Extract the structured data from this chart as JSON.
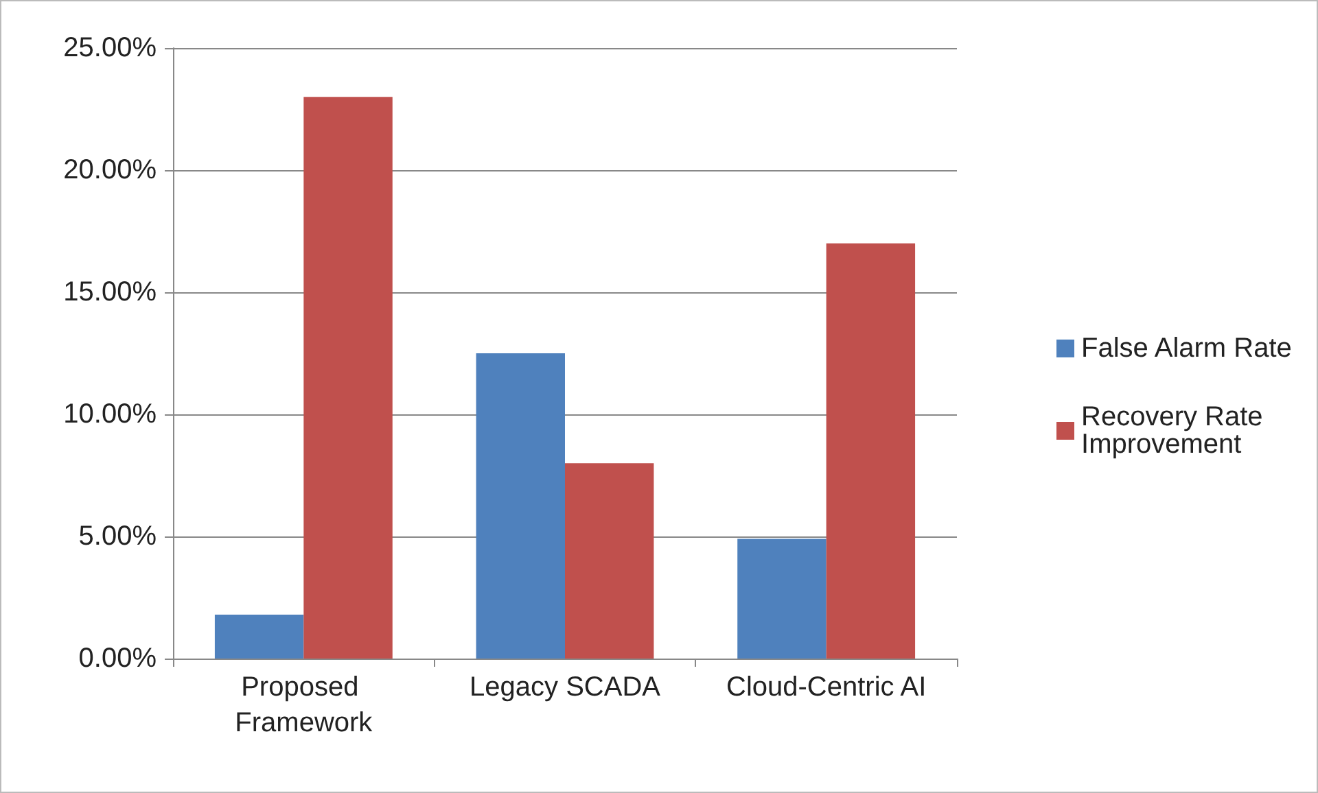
{
  "chart_data": {
    "type": "bar",
    "categories": [
      "Proposed Framework",
      "Legacy SCADA",
      "Cloud-Centric AI"
    ],
    "series": [
      {
        "name": "False Alarm Rate",
        "color": "#4f81bd",
        "values": [
          1.8,
          12.5,
          4.9
        ]
      },
      {
        "name": "Recovery Rate Improvement",
        "color": "#c0504d",
        "values": [
          23,
          8,
          17
        ]
      }
    ],
    "ylim": [
      0,
      25
    ],
    "yticks": [
      {
        "value": 0,
        "label": "0.00%"
      },
      {
        "value": 5,
        "label": "5.00%"
      },
      {
        "value": 10,
        "label": "10.00%"
      },
      {
        "value": 15,
        "label": "15.00%"
      },
      {
        "value": 20,
        "label": "20.00%"
      },
      {
        "value": 25,
        "label": "25.00%"
      }
    ],
    "grid": "y",
    "legend": "right"
  }
}
